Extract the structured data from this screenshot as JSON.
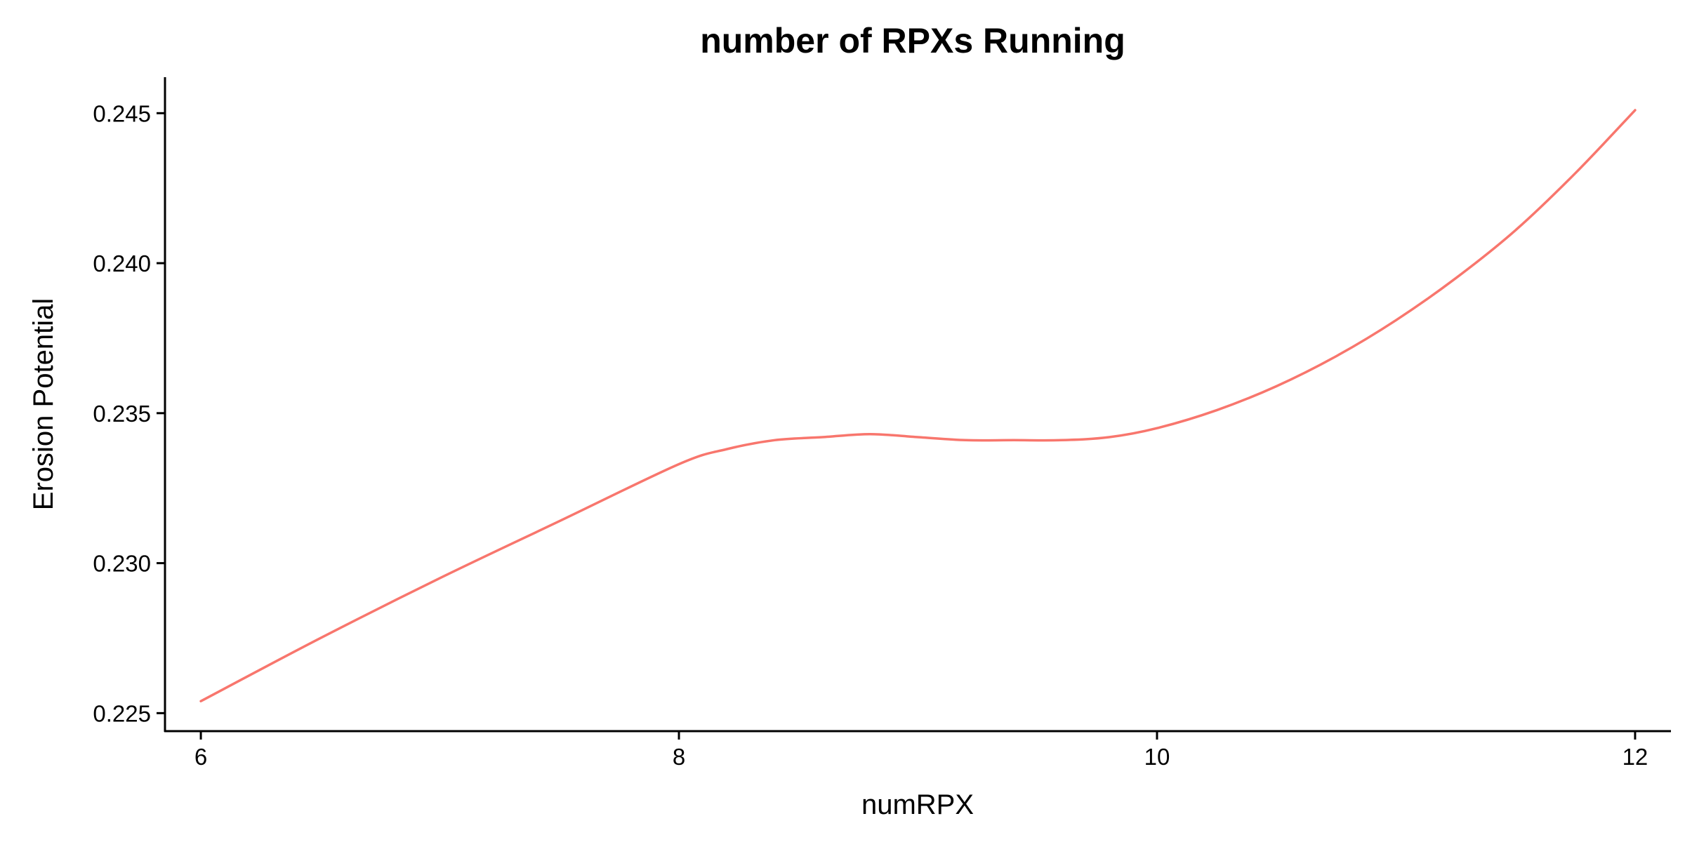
{
  "chart_data": {
    "type": "line",
    "title": "number of RPXs Running",
    "xlabel": "numRPX",
    "ylabel": "Erosion Potential",
    "xlim": [
      5.85,
      12.15
    ],
    "ylim": [
      0.2244,
      0.2462
    ],
    "x_ticks": [
      6,
      8,
      10,
      12
    ],
    "x_tick_labels": [
      "6",
      "8",
      "10",
      "12"
    ],
    "y_ticks": [
      0.225,
      0.23,
      0.235,
      0.24,
      0.245
    ],
    "y_tick_labels": [
      "0.225",
      "0.230",
      "0.235",
      "0.240",
      "0.245"
    ],
    "grid": false,
    "legend": "none",
    "series": [
      {
        "color": "#F8766D",
        "x": [
          6.0,
          6.5,
          7.0,
          7.5,
          8.0,
          8.2,
          8.4,
          8.6,
          8.8,
          9.0,
          9.2,
          9.4,
          9.6,
          9.8,
          10.0,
          10.25,
          10.5,
          10.75,
          11.0,
          11.25,
          11.5,
          11.75,
          12.0
        ],
        "y": [
          0.2254,
          0.2275,
          0.2295,
          0.2314,
          0.2333,
          0.2338,
          0.2341,
          0.2342,
          0.2343,
          0.2342,
          0.2341,
          0.2341,
          0.2341,
          0.2342,
          0.2345,
          0.2351,
          0.2359,
          0.2369,
          0.2381,
          0.2395,
          0.2411,
          0.243,
          0.2451
        ]
      }
    ]
  }
}
